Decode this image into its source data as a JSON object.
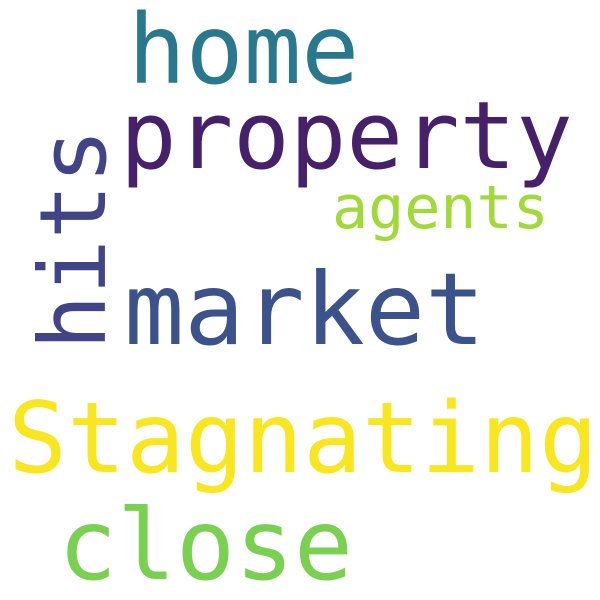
{
  "words": [
    {
      "text": "home",
      "color": "#2a788e"
    },
    {
      "text": "property",
      "color": "#46216a"
    },
    {
      "text": "agents",
      "color": "#a0da39"
    },
    {
      "text": "market",
      "color": "#3b528b"
    },
    {
      "text": "hits",
      "color": "#414487"
    },
    {
      "text": "Stagnating",
      "color": "#f8e621"
    },
    {
      "text": "close",
      "color": "#7ad151"
    }
  ]
}
